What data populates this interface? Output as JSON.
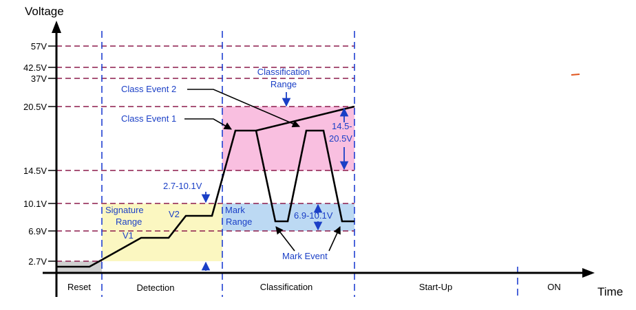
{
  "axes": {
    "y_title": "Voltage",
    "x_title": "Time",
    "y_ticks": [
      "57V",
      "42.5V",
      "37V",
      "20.5V",
      "14.5V",
      "10.1V",
      "6.9V",
      "2.7V"
    ]
  },
  "phases": [
    "Reset",
    "Detection",
    "Classification",
    "Start-Up",
    "ON"
  ],
  "annotations": {
    "classification_range": [
      "Classification",
      "Range"
    ],
    "class_event_2": "Class Event 2",
    "class_event_1": "Class Event 1",
    "range_14_20": [
      "14.5-",
      "20.5V"
    ],
    "range_2_7_10_1": "2.7-10.1V",
    "signature_range": [
      "Signature",
      "Range"
    ],
    "v1": "V1",
    "v2": "V2",
    "mark_range": [
      "Mark",
      "Range"
    ],
    "range_6_9_10_1": "6.9-10.1V",
    "mark_event": "Mark Event"
  },
  "colors": {
    "grid_dashed": "#8b1a4a",
    "phase_divider": "#1f3fd1",
    "annotation_text": "#1a3fc6",
    "signature_region": "#fbf7c1",
    "classification_region": "#f9bfe0",
    "mark_region": "#bcd9f3",
    "reset_region": "#d0d0d0",
    "waveform": "#000000"
  }
}
